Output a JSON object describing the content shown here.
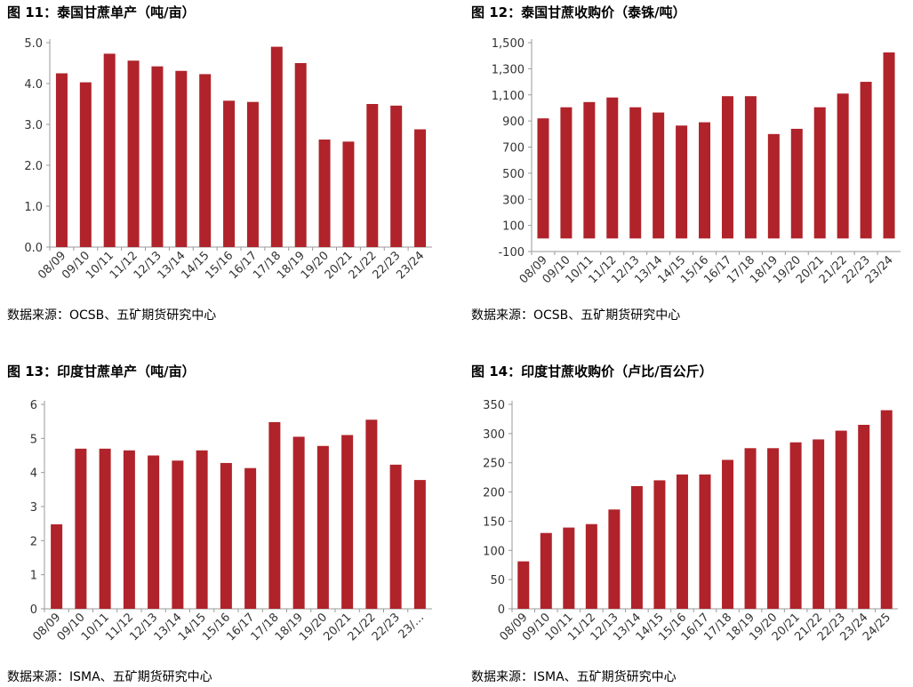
{
  "charts": [
    {
      "title": "图 11：泰国甘蔗单产（吨/亩）",
      "source": "数据来源：OCSB、五矿期货研究中心"
    },
    {
      "title": "图 12：泰国甘蔗收购价（泰铢/吨）",
      "source": "数据来源：OCSB、五矿期货研究中心"
    },
    {
      "title": "图 13：印度甘蔗单产（吨/亩）",
      "source": "数据来源：ISMA、五矿期货研究中心"
    },
    {
      "title": "图 14：印度甘蔗收购价（卢比/百公斤）",
      "source": "数据来源：ISMA、五矿期货研究中心"
    }
  ],
  "chart_data": [
    {
      "type": "bar",
      "title": "图 11：泰国甘蔗单产（吨/亩）",
      "categories": [
        "08/09",
        "09/10",
        "10/11",
        "11/12",
        "12/13",
        "13/14",
        "14/15",
        "15/16",
        "16/17",
        "17/18",
        "18/19",
        "19/20",
        "20/21",
        "21/22",
        "22/23",
        "23/24"
      ],
      "values": [
        4.25,
        4.03,
        4.73,
        4.56,
        4.42,
        4.31,
        4.23,
        3.58,
        3.55,
        4.9,
        4.5,
        2.63,
        2.58,
        3.5,
        3.46,
        2.88
      ],
      "ylim": [
        0,
        5
      ],
      "yticks": [
        "0.0",
        "1.0",
        "2.0",
        "3.0",
        "4.0",
        "5.0"
      ],
      "xlabel": "",
      "ylabel": "",
      "color": "#b0232a"
    },
    {
      "type": "bar",
      "title": "图 12：泰国甘蔗收购价（泰铢/吨）",
      "categories": [
        "08/09",
        "09/10",
        "10/11",
        "11/12",
        "12/13",
        "13/14",
        "14/15",
        "15/16",
        "16/17",
        "17/18",
        "18/19",
        "19/20",
        "20/21",
        "21/22",
        "22/23",
        "23/24"
      ],
      "values": [
        920,
        1005,
        1045,
        1080,
        1005,
        965,
        865,
        890,
        1090,
        1090,
        800,
        840,
        1005,
        1110,
        1200,
        1425
      ],
      "ylim": [
        -100,
        1500
      ],
      "yticks": [
        "-100",
        "100",
        "300",
        "500",
        "700",
        "900",
        "1,100",
        "1,300",
        "1,500"
      ],
      "xlabel": "",
      "ylabel": "",
      "color": "#b0232a"
    },
    {
      "type": "bar",
      "title": "图 13：印度甘蔗单产（吨/亩）",
      "categories": [
        "08/09",
        "09/10",
        "10/11",
        "11/12",
        "12/13",
        "13/14",
        "14/15",
        "15/16",
        "16/17",
        "17/18",
        "18/19",
        "19/20",
        "20/21",
        "21/22",
        "22/23",
        "23/…"
      ],
      "values": [
        2.48,
        4.7,
        4.7,
        4.65,
        4.5,
        4.35,
        4.65,
        4.28,
        4.13,
        5.48,
        5.05,
        4.78,
        5.1,
        5.55,
        4.23,
        3.78
      ],
      "ylim": [
        0,
        6
      ],
      "yticks": [
        "0",
        "1",
        "2",
        "3",
        "4",
        "5",
        "6"
      ],
      "xlabel": "",
      "ylabel": "",
      "color": "#b0232a"
    },
    {
      "type": "bar",
      "title": "图 14：印度甘蔗收购价（卢比/百公斤）",
      "categories": [
        "08/09",
        "09/10",
        "10/11",
        "11/12",
        "12/13",
        "13/14",
        "14/15",
        "15/16",
        "16/17",
        "17/18",
        "18/19",
        "19/20",
        "20/21",
        "21/22",
        "22/23",
        "23/24",
        "24/25"
      ],
      "values": [
        81.2,
        129.8,
        139.1,
        145,
        170,
        210,
        220,
        230,
        230,
        255,
        275,
        275,
        285,
        290,
        305,
        315,
        340
      ],
      "ylim": [
        0,
        350
      ],
      "yticks": [
        "0",
        "50",
        "100",
        "150",
        "200",
        "250",
        "300",
        "350"
      ],
      "xlabel": "",
      "ylabel": "",
      "color": "#b0232a"
    }
  ]
}
